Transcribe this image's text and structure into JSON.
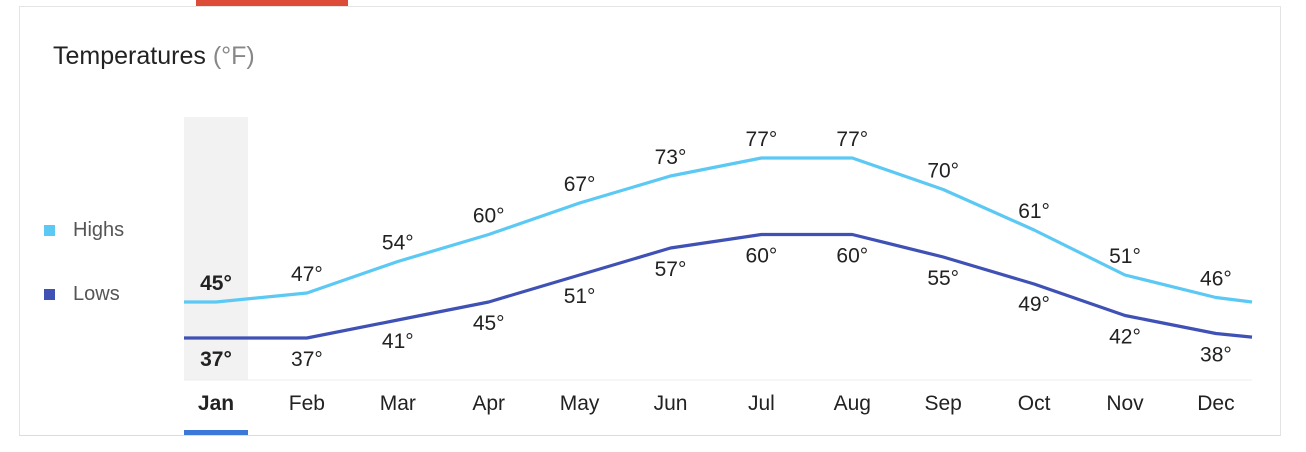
{
  "header": {
    "title": "Temperatures",
    "unit": "(°F)"
  },
  "legend": {
    "highs": {
      "label": "Highs",
      "color": "#5bc9f4"
    },
    "lows": {
      "label": "Lows",
      "color": "#3f51b5"
    }
  },
  "selected_month_index": 0,
  "chart_data": {
    "type": "line",
    "categories": [
      "Jan",
      "Feb",
      "Mar",
      "Apr",
      "May",
      "Jun",
      "Jul",
      "Aug",
      "Sep",
      "Oct",
      "Nov",
      "Dec"
    ],
    "series": [
      {
        "name": "Highs",
        "values": [
          45,
          47,
          54,
          60,
          67,
          73,
          77,
          77,
          70,
          61,
          51,
          46
        ],
        "color": "#5bc9f4"
      },
      {
        "name": "Lows",
        "values": [
          37,
          37,
          41,
          45,
          51,
          57,
          60,
          60,
          55,
          49,
          42,
          38
        ],
        "color": "#3f51b5"
      }
    ],
    "value_suffix": "°",
    "legend_position": "left",
    "grid": false
  }
}
